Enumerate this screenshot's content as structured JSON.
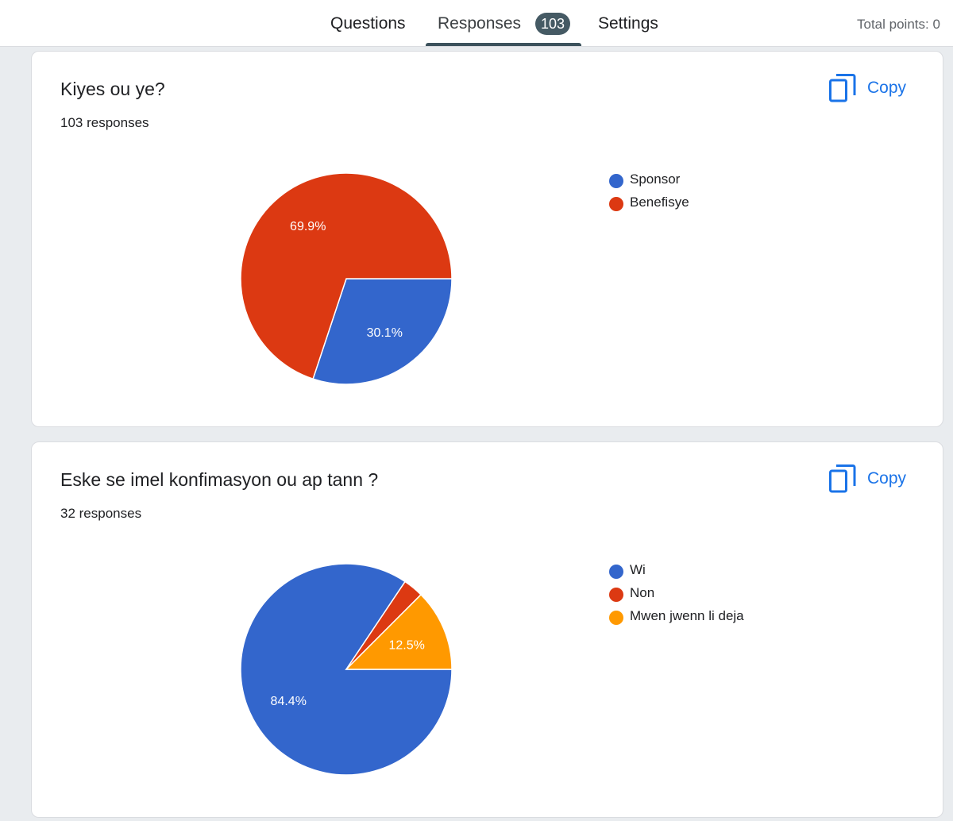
{
  "header": {
    "tabs": {
      "questions": "Questions",
      "responses": "Responses",
      "responses_count": "103",
      "settings": "Settings"
    },
    "total_points": "Total points: 0"
  },
  "colors": {
    "blue": "#3366cc",
    "red": "#dc3912",
    "orange": "#ff9900",
    "accent": "#1a73e8"
  },
  "cards": [
    {
      "title": "Kiyes ou ye?",
      "responses": "103 responses",
      "copy_label": "Copy"
    },
    {
      "title": "Eske se imel konfimasyon ou ap tann ?",
      "responses": "32 responses",
      "copy_label": "Copy"
    }
  ],
  "chart_data": [
    {
      "type": "pie",
      "labels": [
        "Sponsor",
        "Benefisye"
      ],
      "values": [
        30.1,
        69.9
      ],
      "value_labels": [
        "30.1%",
        "69.9%"
      ],
      "colors": [
        "#3366cc",
        "#dc3912"
      ],
      "legend": "right"
    },
    {
      "type": "pie",
      "labels": [
        "Wi",
        "Non",
        "Mwen jwenn li deja"
      ],
      "values": [
        84.4,
        3.1,
        12.5
      ],
      "value_labels": [
        "84.4%",
        "",
        "12.5%"
      ],
      "colors": [
        "#3366cc",
        "#dc3912",
        "#ff9900"
      ],
      "legend": "right"
    }
  ]
}
